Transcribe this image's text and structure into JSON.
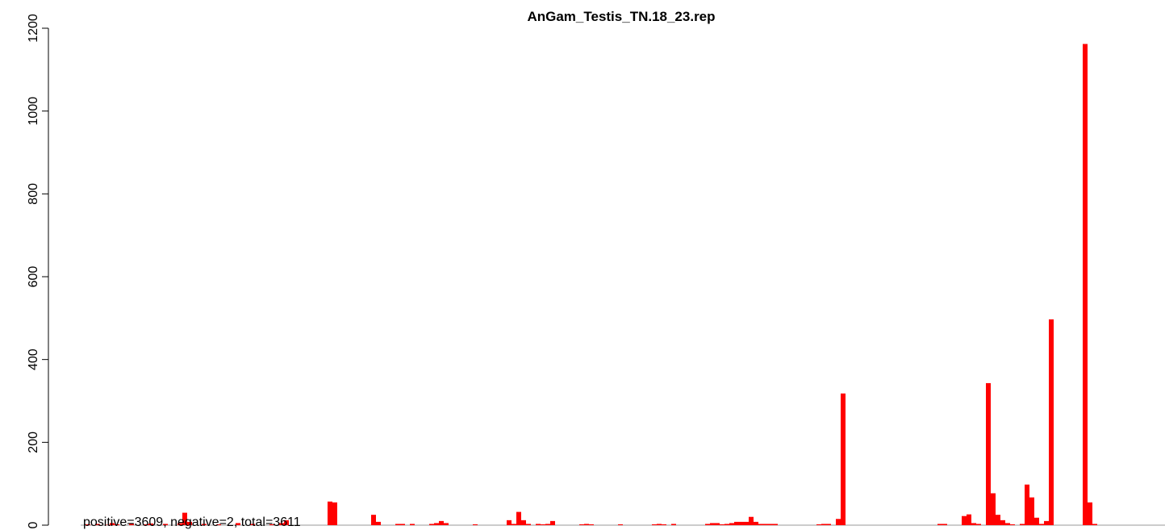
{
  "chart_data": {
    "type": "bar",
    "title": "AnGam_Testis_TN.18_23.rep",
    "annotation": "positive=3609, negative=2, total=3611",
    "color": "#ff0000",
    "categories": [
      null,
      null,
      null,
      null,
      null,
      null,
      null,
      null,
      null,
      null,
      null,
      null,
      null,
      null,
      null,
      null,
      null,
      null,
      null,
      null,
      null,
      null,
      null,
      null,
      null,
      null,
      null,
      null,
      null,
      null,
      null,
      null,
      null,
      null,
      null,
      null,
      null,
      null,
      null,
      null,
      null,
      null,
      null,
      null,
      null,
      null,
      null,
      null,
      null,
      null,
      null,
      null,
      null,
      null,
      null,
      null,
      null,
      null,
      null,
      null,
      null,
      null,
      null,
      null,
      null,
      null,
      null,
      null,
      null,
      null,
      null,
      null,
      null,
      null,
      null,
      null,
      null,
      null,
      null,
      null,
      null,
      null,
      null,
      null,
      null,
      null,
      null,
      null,
      null,
      null,
      null,
      null,
      null,
      null,
      null,
      null,
      null,
      null,
      null,
      null,
      null,
      null,
      null,
      null,
      null,
      null,
      null,
      null,
      null,
      null,
      null,
      null,
      null,
      null,
      null,
      null,
      null,
      null,
      null,
      null,
      null,
      null,
      null,
      null,
      null,
      null,
      null,
      null,
      null,
      null,
      null,
      null,
      null,
      null,
      null,
      null,
      null,
      null,
      null,
      null,
      null,
      null,
      null,
      null,
      null,
      null,
      null,
      null,
      null,
      null,
      null,
      null,
      null,
      null,
      null,
      null,
      null,
      null,
      null,
      null,
      null,
      null,
      null,
      null,
      null,
      null,
      null,
      null,
      null,
      null,
      null,
      null,
      null,
      null,
      null,
      null,
      null,
      null,
      null,
      null,
      null,
      null,
      null,
      null,
      null,
      null,
      null,
      null,
      null,
      null,
      null,
      null,
      null,
      null,
      null,
      null,
      null,
      null,
      null,
      null,
      null,
      null,
      null,
      null,
      null,
      null,
      null,
      null,
      null,
      null,
      null,
      null,
      null,
      null,
      null,
      null,
      null,
      null,
      null
    ],
    "values": [
      0,
      2,
      0,
      3,
      0,
      1,
      5,
      2,
      0,
      0,
      3,
      0,
      0,
      2,
      4,
      0,
      0,
      3,
      0,
      0,
      5,
      30,
      8,
      0,
      0,
      3,
      0,
      0,
      2,
      0,
      0,
      0,
      5,
      0,
      0,
      3,
      0,
      0,
      0,
      2,
      0,
      5,
      12,
      0,
      0,
      0,
      0,
      0,
      0,
      0,
      0,
      57,
      55,
      0,
      0,
      0,
      0,
      0,
      0,
      0,
      25,
      8,
      0,
      0,
      0,
      3,
      3,
      0,
      3,
      0,
      0,
      0,
      3,
      5,
      10,
      5,
      0,
      0,
      0,
      0,
      0,
      2,
      0,
      0,
      0,
      0,
      0,
      0,
      12,
      3,
      32,
      12,
      3,
      0,
      3,
      2,
      3,
      10,
      0,
      0,
      0,
      0,
      0,
      2,
      3,
      2,
      0,
      0,
      0,
      0,
      0,
      2,
      0,
      0,
      0,
      0,
      0,
      0,
      2,
      3,
      2,
      0,
      3,
      0,
      0,
      0,
      0,
      0,
      0,
      3,
      5,
      5,
      2,
      3,
      5,
      8,
      8,
      8,
      20,
      8,
      3,
      3,
      3,
      3,
      0,
      0,
      0,
      0,
      0,
      0,
      0,
      0,
      2,
      3,
      3,
      0,
      15,
      318,
      0,
      0,
      0,
      0,
      0,
      0,
      0,
      0,
      0,
      0,
      0,
      0,
      0,
      0,
      0,
      0,
      0,
      0,
      0,
      3,
      3,
      0,
      0,
      0,
      22,
      26,
      5,
      3,
      0,
      343,
      77,
      25,
      12,
      5,
      2,
      0,
      3,
      98,
      67,
      18,
      3,
      10,
      497,
      0,
      0,
      0,
      0,
      0,
      0,
      1162,
      55,
      3,
      0,
      0,
      0,
      0,
      0,
      0,
      0,
      0,
      0
    ],
    "ylim": [
      0,
      1200
    ],
    "yticks": [
      0,
      200,
      400,
      600,
      800,
      1000,
      1200
    ]
  }
}
